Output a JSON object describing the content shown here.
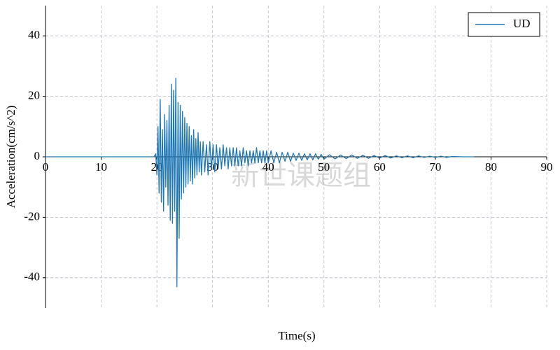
{
  "chart_data": {
    "type": "line",
    "xlabel": "Time(s)",
    "ylabel": "Acceleration(cm/s^2)",
    "watermark": "新世课题组",
    "xlim": [
      0,
      90
    ],
    "ylim": [
      -50,
      50
    ],
    "xticks": [
      0,
      10,
      20,
      30,
      40,
      50,
      60,
      70,
      80,
      90
    ],
    "yticks": [
      -40,
      -20,
      0,
      20,
      40
    ],
    "grid": true,
    "legend": "upper right",
    "x": [
      0,
      19.5,
      19.8,
      20.0,
      20.2,
      20.4,
      20.6,
      20.8,
      21.0,
      21.2,
      21.4,
      21.6,
      21.8,
      22.0,
      22.2,
      22.4,
      22.6,
      22.8,
      23.0,
      23.2,
      23.4,
      23.6,
      23.8,
      24.0,
      24.2,
      24.4,
      24.6,
      24.8,
      25.0,
      25.2,
      25.4,
      25.6,
      25.8,
      26.0,
      26.2,
      26.4,
      26.6,
      26.8,
      27.0,
      27.2,
      27.4,
      27.6,
      27.8,
      28.0,
      28.3,
      28.6,
      28.9,
      29.2,
      29.5,
      29.8,
      30.1,
      30.4,
      30.7,
      31.0,
      31.3,
      31.6,
      31.9,
      32.2,
      32.5,
      32.8,
      33.1,
      33.4,
      33.7,
      34.0,
      34.3,
      34.6,
      34.9,
      35.2,
      35.5,
      35.8,
      36.1,
      36.4,
      36.7,
      37.0,
      37.3,
      37.6,
      37.9,
      38.2,
      38.5,
      38.8,
      39.1,
      39.4,
      39.7,
      40.0,
      40.5,
      41,
      41.5,
      42,
      42.5,
      43,
      43.5,
      44,
      44.5,
      45,
      45.5,
      46,
      46.5,
      47,
      47.5,
      48,
      48.5,
      49,
      49.5,
      50,
      51,
      52,
      53,
      54,
      55,
      56,
      57,
      58,
      59,
      60,
      61,
      62,
      63,
      64,
      65,
      66,
      67,
      68,
      69,
      70,
      71,
      72,
      73,
      75,
      77
    ],
    "series": [
      {
        "name": "UD",
        "color": "#1f77b4",
        "values": [
          0,
          0,
          1,
          -6,
          10,
          -12,
          19,
          -15,
          9,
          -18,
          14,
          -10,
          12,
          -16,
          17,
          -21,
          24,
          -22,
          22,
          -18,
          26,
          -43,
          18,
          -27,
          17,
          -14,
          15,
          -12,
          13,
          -10,
          11,
          -9,
          10,
          -8,
          7,
          -9,
          9,
          -7,
          6,
          -6,
          8,
          -5,
          5,
          -6,
          5,
          -5,
          4,
          -6,
          5,
          -4,
          4,
          -5,
          4,
          -4,
          3,
          -4,
          4,
          -3,
          3,
          -4,
          3,
          -3,
          3,
          -3,
          3,
          -3,
          2,
          -3,
          3,
          -2,
          2,
          -3,
          2,
          -2,
          2,
          -2,
          3,
          -2,
          2,
          -2,
          2,
          -2,
          2,
          -2,
          2,
          -2,
          1.5,
          -2,
          1.5,
          -1.5,
          1.5,
          -1.5,
          1.2,
          -1.2,
          1.2,
          -1.2,
          1,
          -1,
          1,
          -1,
          1,
          -0.8,
          0.8,
          -0.8,
          0.7,
          -0.7,
          0.6,
          -0.6,
          0.6,
          -0.5,
          0.5,
          -0.5,
          0.4,
          -0.4,
          0.4,
          -0.4,
          0.3,
          -0.3,
          0.3,
          -0.3,
          0.3,
          -0.2,
          0.2,
          -0.2,
          0.2,
          -0.2,
          0.1,
          0,
          0
        ]
      }
    ]
  }
}
